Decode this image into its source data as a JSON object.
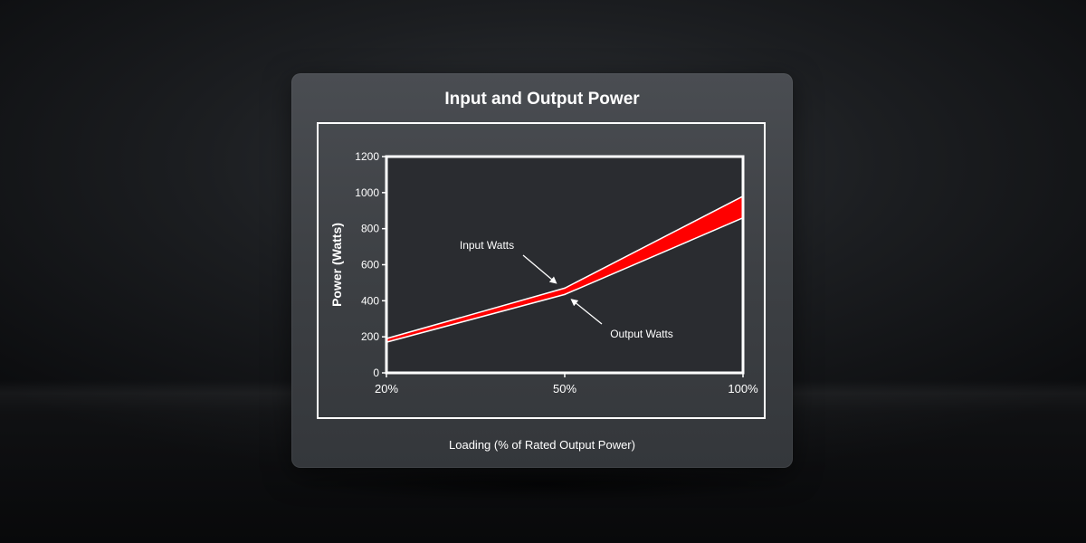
{
  "chart_data": {
    "type": "area",
    "title": "Input and Output Power",
    "xlabel": "Loading (% of Rated Output Power)",
    "ylabel": "Power (Watts)",
    "categories": [
      "20%",
      "50%",
      "100%"
    ],
    "ylim": [
      0,
      1200
    ],
    "yticks": [
      0,
      200,
      400,
      600,
      800,
      1000,
      1200
    ],
    "series": [
      {
        "name": "Input Watts",
        "values": [
          190,
          470,
          980
        ]
      },
      {
        "name": "Output Watts",
        "values": [
          170,
          435,
          860
        ]
      }
    ],
    "annotations": [
      {
        "text": "Input Watts",
        "target_category": "50%",
        "series": "Input Watts"
      },
      {
        "text": "Output Watts",
        "target_category": "50%",
        "series": "Output Watts"
      }
    ],
    "colors": {
      "band": "#ff0000",
      "line": "#ffffff",
      "text": "#ffffff"
    },
    "grid": false,
    "legend": "none"
  }
}
